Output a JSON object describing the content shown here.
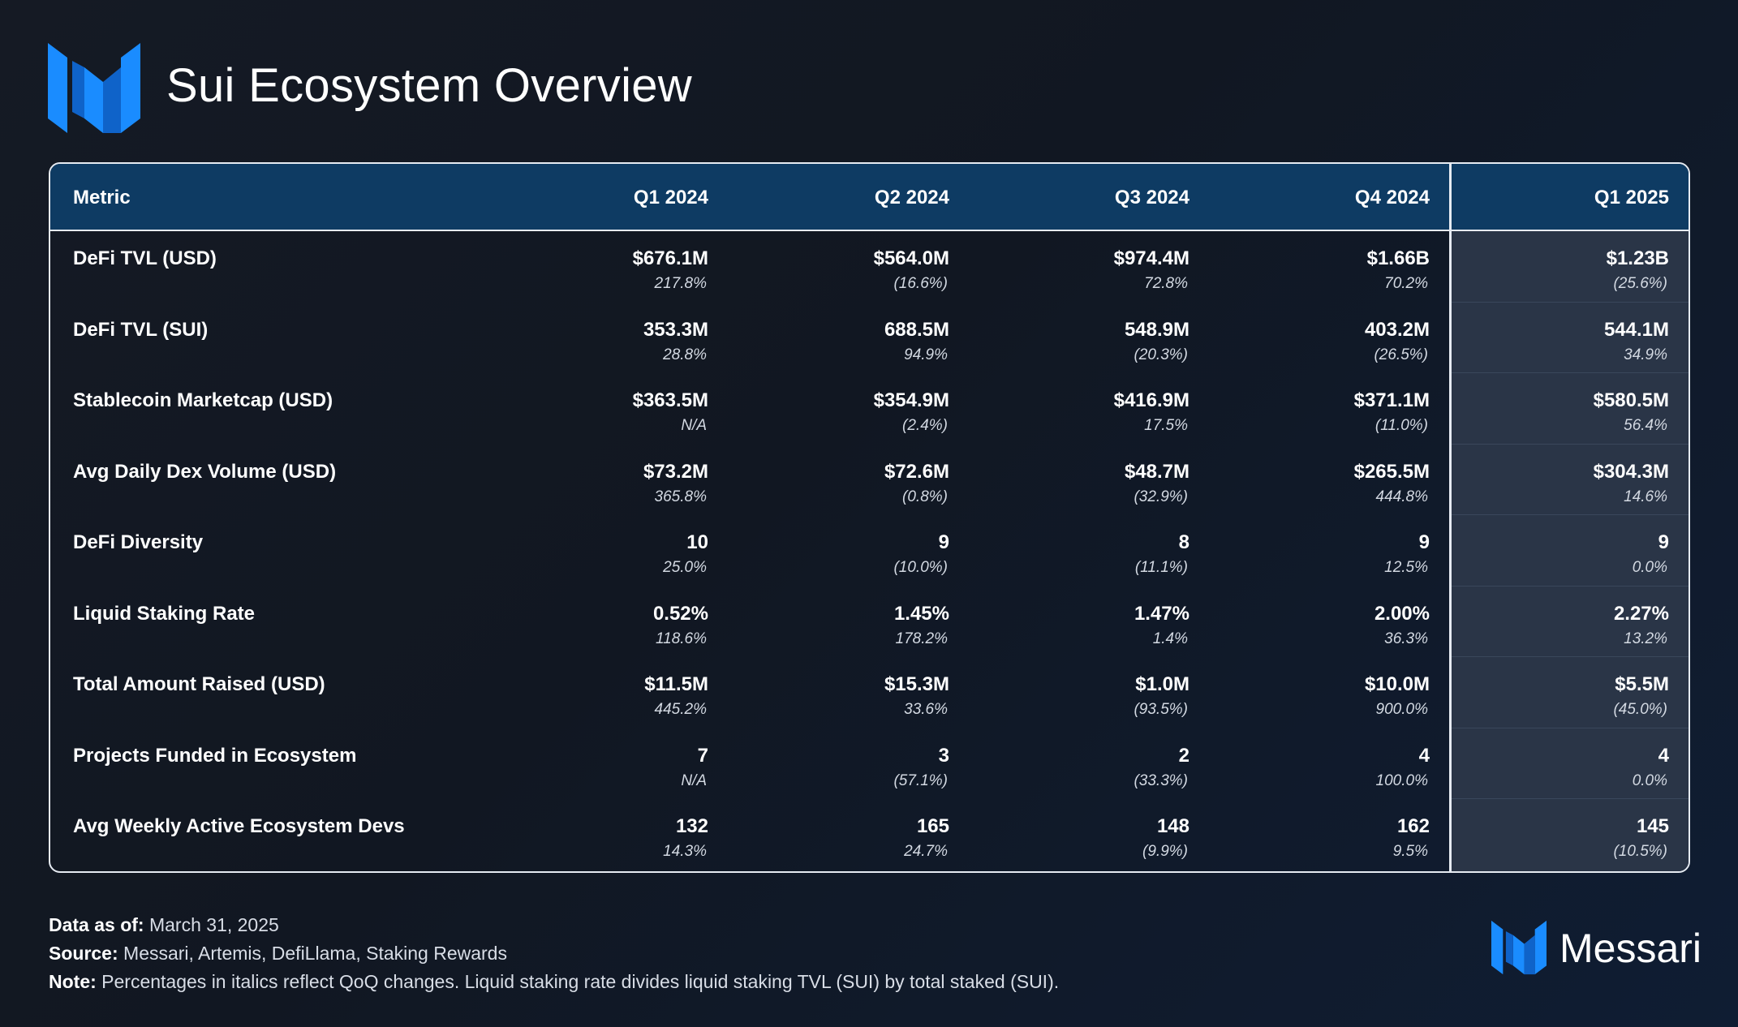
{
  "title": "Sui Ecosystem Overview",
  "brand": {
    "name": "Messari",
    "accent": "#1a8cff",
    "header_color": "#0e3b63",
    "highlight_color": "#2a3547"
  },
  "footer": {
    "data_as_of_label": "Data as of:",
    "data_as_of_value": "March 31, 2025",
    "source_label": "Source:",
    "source_value": "Messari, Artemis, DefiLlama, Staking Rewards",
    "note_label": "Note:",
    "note_value": "Percentages in italics reflect QoQ changes. Liquid staking rate divides liquid staking TVL (SUI) by total staked (SUI)."
  },
  "chart_data": {
    "type": "table",
    "columns": [
      "Metric",
      "Q1 2024",
      "Q2 2024",
      "Q3 2024",
      "Q4 2024",
      "Q1 2025"
    ],
    "rows": [
      {
        "metric": "DeFi TVL (USD)",
        "values": [
          "$676.1M",
          "$564.0M",
          "$974.4M",
          "$1.66B",
          "$1.23B"
        ],
        "changes": [
          "217.8%",
          "(16.6%)",
          "72.8%",
          "70.2%",
          "(25.6%)"
        ]
      },
      {
        "metric": "DeFi TVL (SUI)",
        "values": [
          "353.3M",
          "688.5M",
          "548.9M",
          "403.2M",
          "544.1M"
        ],
        "changes": [
          "28.8%",
          "94.9%",
          "(20.3%)",
          "(26.5%)",
          "34.9%"
        ]
      },
      {
        "metric": "Stablecoin Marketcap (USD)",
        "values": [
          "$363.5M",
          "$354.9M",
          "$416.9M",
          "$371.1M",
          "$580.5M"
        ],
        "changes": [
          "N/A",
          "(2.4%)",
          "17.5%",
          "(11.0%)",
          "56.4%"
        ]
      },
      {
        "metric": "Avg Daily Dex Volume (USD)",
        "values": [
          "$73.2M",
          "$72.6M",
          "$48.7M",
          "$265.5M",
          "$304.3M"
        ],
        "changes": [
          "365.8%",
          "(0.8%)",
          "(32.9%)",
          "444.8%",
          "14.6%"
        ]
      },
      {
        "metric": "DeFi Diversity",
        "values": [
          "10",
          "9",
          "8",
          "9",
          "9"
        ],
        "changes": [
          "25.0%",
          "(10.0%)",
          "(11.1%)",
          "12.5%",
          "0.0%"
        ]
      },
      {
        "metric": "Liquid Staking Rate",
        "values": [
          "0.52%",
          "1.45%",
          "1.47%",
          "2.00%",
          "2.27%"
        ],
        "changes": [
          "118.6%",
          "178.2%",
          "1.4%",
          "36.3%",
          "13.2%"
        ]
      },
      {
        "metric": "Total Amount Raised (USD)",
        "values": [
          "$11.5M",
          "$15.3M",
          "$1.0M",
          "$10.0M",
          "$5.5M"
        ],
        "changes": [
          "445.2%",
          "33.6%",
          "(93.5%)",
          "900.0%",
          "(45.0%)"
        ]
      },
      {
        "metric": "Projects Funded in Ecosystem",
        "values": [
          "7",
          "3",
          "2",
          "4",
          "4"
        ],
        "changes": [
          "N/A",
          "(57.1%)",
          "(33.3%)",
          "100.0%",
          "0.0%"
        ]
      },
      {
        "metric": "Avg Weekly Active Ecosystem Devs",
        "values": [
          "132",
          "165",
          "148",
          "162",
          "145"
        ],
        "changes": [
          "14.3%",
          "24.7%",
          "(9.9%)",
          "9.5%",
          "(10.5%)"
        ]
      }
    ]
  }
}
